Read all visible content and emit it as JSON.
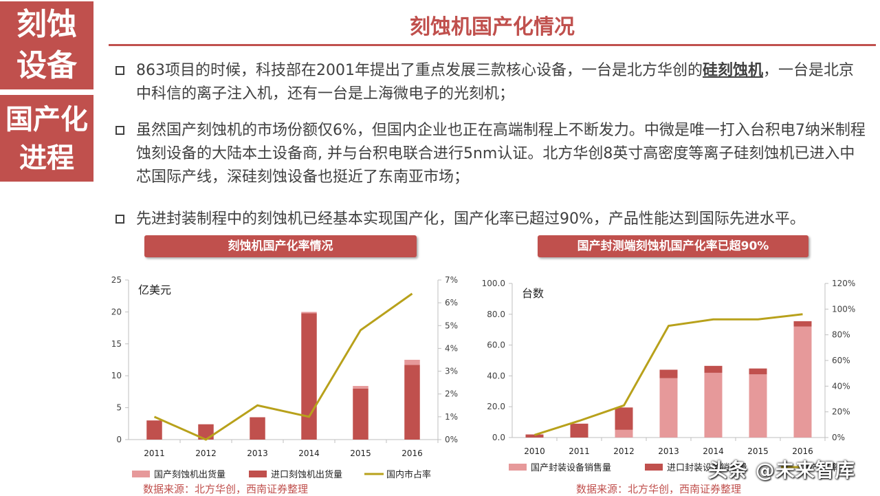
{
  "sidebar": {
    "top_line1": "刻蚀",
    "top_line2": "设备",
    "bottom_line1": "国产化",
    "bottom_line2": "进程"
  },
  "title": "刻蚀机国产化情况",
  "bullets": [
    {
      "pre": "863项目的时候，科技部在2001年提出了重点发展三款核心设备，一台是北方华创的",
      "bold": "硅刻蚀机",
      "post": "，一台是北京中科信的离子注入机，还有一台是上海微电子的光刻机；"
    },
    {
      "pre": "虽然国产刻蚀机的市场份额仅6%，但国内企业也正在高端制程上不断发力。中微是唯一打入台积电7纳米制程蚀刻设备的大陆本土设备商, 并与台积电联合进行5nm认证。北方华创8英寸高密度等离子硅刻蚀机已进入中芯国际产线，深硅刻蚀设备也挺近了东南亚市场；",
      "bold": "",
      "post": ""
    },
    {
      "pre": "先进封装制程中的刻蚀机已经基本实现国产化，国产化率已超过90%，产品性能达到国际先进水平。",
      "bold": "",
      "post": ""
    }
  ],
  "left_chart_header": "刻蚀机国产化率情况",
  "right_chart_header": "国产封测端刻蚀机国产化率已超90%",
  "left_source": "数据来源：北方华创，西南证券整理",
  "right_source": "数据来源：北方华创，西南证券整理",
  "watermark": "头条 @未来智库",
  "colors": {
    "accent": "#c0504d",
    "light_bar": "#e6999a",
    "line": "#b8a11b"
  },
  "chart_data": [
    {
      "type": "bar",
      "stacked": true,
      "unit_label": "亿美元",
      "categories": [
        "2011",
        "2012",
        "2013",
        "2014",
        "2015",
        "2016"
      ],
      "ylim": [
        0,
        25
      ],
      "yticks": [
        "0",
        "5",
        "10",
        "15",
        "20",
        "25"
      ],
      "y2lim": [
        0,
        7
      ],
      "y2ticks": [
        "0%",
        "1%",
        "2%",
        "3%",
        "4%",
        "5%",
        "6%",
        "7%"
      ],
      "series": [
        {
          "name": "国产刻蚀机出货量",
          "kind": "bar",
          "values": [
            0,
            0,
            0,
            0.2,
            0.4,
            0.8
          ]
        },
        {
          "name": "进口刻蚀机出货量",
          "kind": "bar",
          "values": [
            3,
            2.4,
            3.5,
            19.8,
            8,
            11.7
          ]
        },
        {
          "name": "国内市占率",
          "kind": "line",
          "axis": "right",
          "values": [
            1.0,
            0.0,
            1.5,
            1.0,
            4.8,
            6.4
          ]
        }
      ],
      "legend_position": "bottom"
    },
    {
      "type": "bar",
      "stacked": true,
      "unit_label": "台数",
      "categories": [
        "2010",
        "2011",
        "2012",
        "2013",
        "2014",
        "2015",
        "2016"
      ],
      "ylim": [
        0,
        100
      ],
      "yticks": [
        "0.0",
        "20.0",
        "40.0",
        "60.0",
        "80.0",
        "100.0"
      ],
      "y2lim": [
        0,
        120
      ],
      "y2ticks": [
        "0%",
        "20%",
        "40%",
        "60%",
        "80%",
        "100%",
        "120%"
      ],
      "series": [
        {
          "name": "国产封装设备销售量",
          "kind": "bar",
          "values": [
            0,
            0,
            5,
            38.5,
            42,
            41,
            72
          ]
        },
        {
          "name": "进口封装设备销售量",
          "kind": "bar",
          "values": [
            2,
            9,
            14.5,
            5.5,
            4.5,
            3.8,
            3.5
          ]
        },
        {
          "name": "国产化率",
          "kind": "line",
          "axis": "right",
          "values": [
            2,
            13,
            25,
            87,
            92,
            92,
            96
          ]
        }
      ],
      "legend_position": "bottom"
    }
  ]
}
